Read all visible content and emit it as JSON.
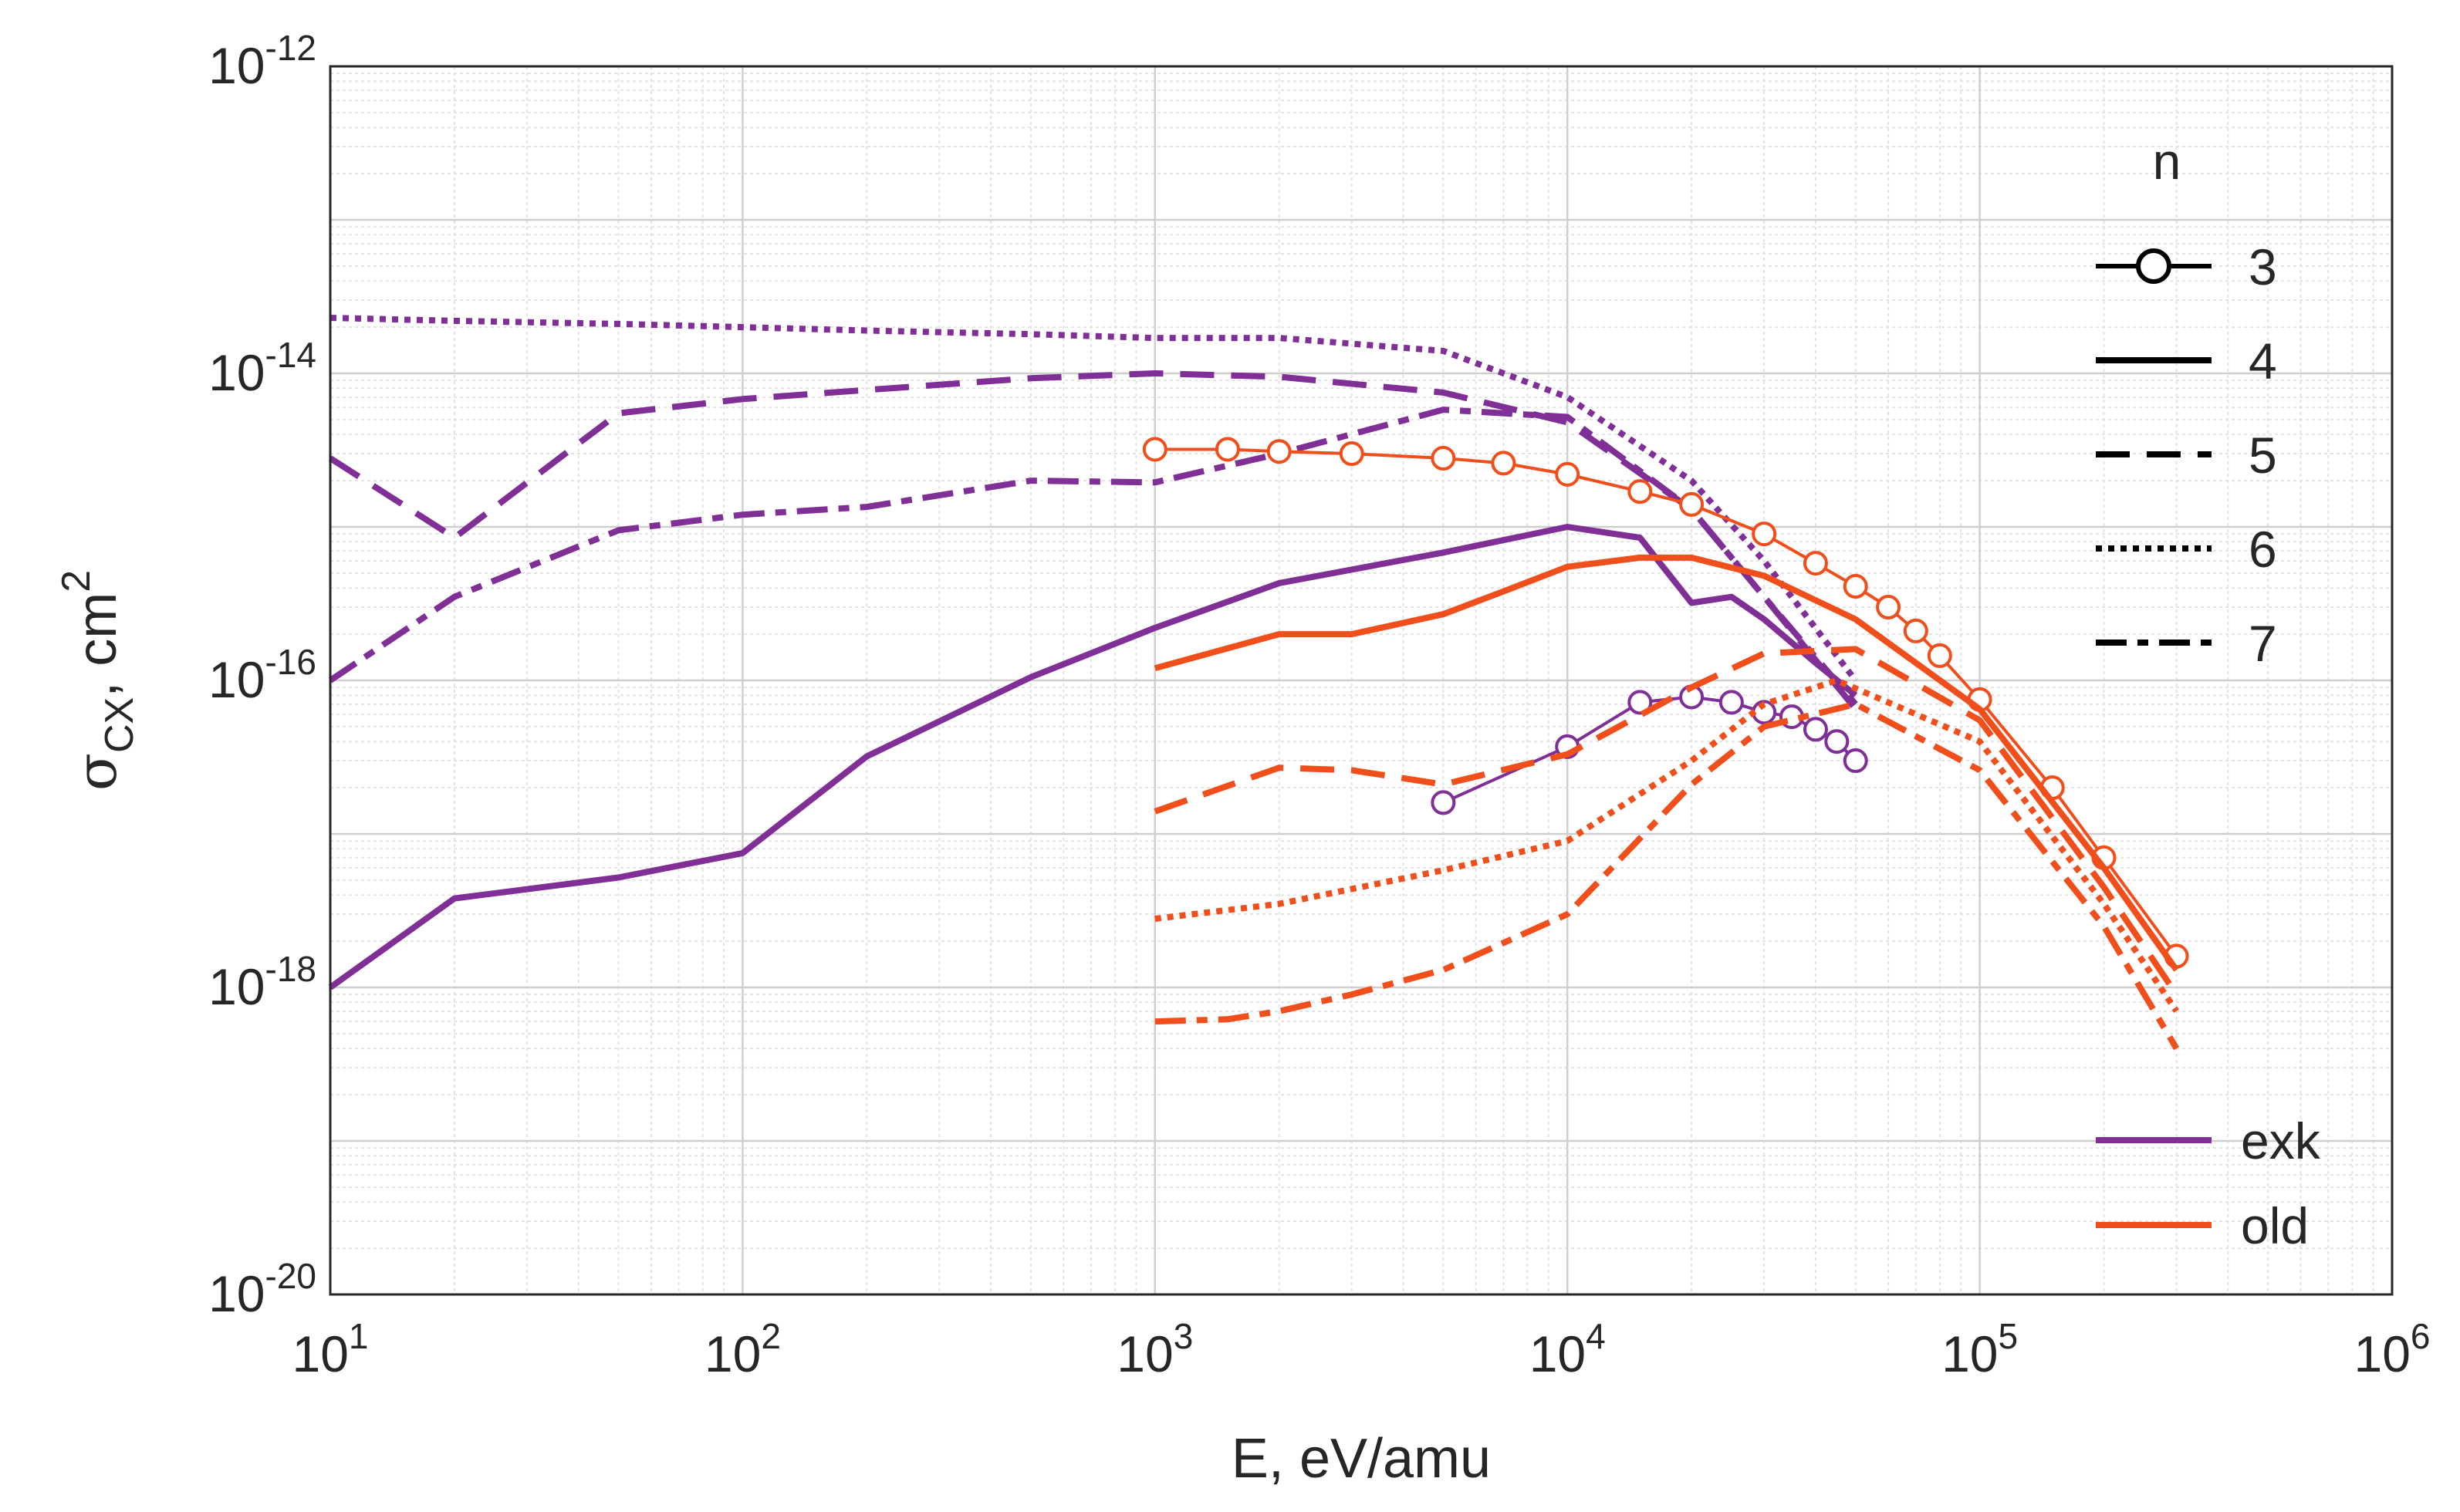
{
  "chart_data": {
    "type": "line",
    "xscale": "log",
    "yscale": "log",
    "xlim": [
      10,
      1000000
    ],
    "ylim": [
      1e-20,
      1e-12
    ],
    "grid": true,
    "minor_grid": true,
    "xlabel": "E, eV/amu",
    "ylabel": {
      "symbol": "σ",
      "subscript": "CX",
      "rest": ", cm",
      "superscript": "2"
    },
    "x_ticks": [
      {
        "base": "10",
        "exp": "1",
        "value": 10
      },
      {
        "base": "10",
        "exp": "2",
        "value": 100
      },
      {
        "base": "10",
        "exp": "3",
        "value": 1000
      },
      {
        "base": "10",
        "exp": "4",
        "value": 10000
      },
      {
        "base": "10",
        "exp": "5",
        "value": 100000
      },
      {
        "base": "10",
        "exp": "6",
        "value": 1000000
      }
    ],
    "y_ticks": [
      {
        "base": "10",
        "exp": "-20",
        "value": 1e-20
      },
      {
        "base": "10",
        "exp": "-18",
        "value": 1e-18
      },
      {
        "base": "10",
        "exp": "-16",
        "value": 1e-16
      },
      {
        "base": "10",
        "exp": "-14",
        "value": 1e-14
      },
      {
        "base": "10",
        "exp": "-12",
        "value": 1e-12
      }
    ],
    "legend_n": {
      "title": "n",
      "placement": "top-right",
      "entries": [
        {
          "label": "3",
          "style": "solid-circle"
        },
        {
          "label": "4",
          "style": "solid"
        },
        {
          "label": "5",
          "style": "dashed"
        },
        {
          "label": "6",
          "style": "dotted"
        },
        {
          "label": "7",
          "style": "dashdot"
        }
      ]
    },
    "legend_source": {
      "placement": "bottom-right",
      "entries": [
        {
          "label": "exk",
          "color": "#7f2f96"
        },
        {
          "label": "old",
          "color": "#f04e1a"
        }
      ]
    },
    "colors": {
      "exk": "#7f2f96",
      "old": "#f04e1a"
    },
    "series": [
      {
        "name": "exk n=6",
        "source": "exk",
        "n": 6,
        "style": "dotted",
        "x": [
          10,
          20,
          50,
          100,
          200,
          500,
          1000,
          2000,
          5000,
          10000,
          20000,
          30000,
          50000
        ],
        "y": [
          2.3e-14,
          2.2e-14,
          2.1e-14,
          2e-14,
          1.9e-14,
          1.8e-14,
          1.7e-14,
          1.7e-14,
          1.4e-14,
          7e-15,
          2e-15,
          6e-16,
          1e-16
        ]
      },
      {
        "name": "exk n=5",
        "source": "exk",
        "n": 5,
        "style": "dashed",
        "x": [
          10,
          20,
          50,
          100,
          200,
          500,
          1000,
          2000,
          5000,
          10000,
          20000,
          30000,
          50000
        ],
        "y": [
          2.8e-15,
          8.5e-16,
          5.5e-15,
          6.8e-15,
          7.8e-15,
          9.3e-15,
          1e-14,
          9.5e-15,
          7.5e-15,
          4.8e-15,
          1.3e-15,
          3.5e-16,
          6.5e-17
        ]
      },
      {
        "name": "exk n=7",
        "source": "exk",
        "n": 7,
        "style": "dashdot",
        "x": [
          10,
          20,
          50,
          100,
          200,
          500,
          1000,
          2000,
          5000,
          10000,
          20000,
          30000,
          50000
        ],
        "y": [
          1e-16,
          3.5e-16,
          9.5e-16,
          1.2e-15,
          1.35e-15,
          2e-15,
          1.95e-15,
          3e-15,
          5.8e-15,
          5.2e-15,
          1.3e-15,
          3.5e-16,
          7e-17
        ]
      },
      {
        "name": "exk n=4",
        "source": "exk",
        "n": 4,
        "style": "solid",
        "x": [
          10,
          20,
          50,
          100,
          200,
          500,
          1000,
          2000,
          5000,
          10000,
          15000,
          20000,
          25000,
          30000,
          40000,
          50000
        ],
        "y": [
          1e-18,
          3.8e-18,
          5.2e-18,
          7.5e-18,
          3.2e-17,
          1.05e-16,
          2.2e-16,
          4.3e-16,
          6.8e-16,
          1e-15,
          8.5e-16,
          3.2e-16,
          3.5e-16,
          2.5e-16,
          1.3e-16,
          8e-17
        ]
      },
      {
        "name": "exk n=3",
        "source": "exk",
        "n": 3,
        "style": "solid-circle",
        "x": [
          5000,
          10000,
          15000,
          20000,
          25000,
          30000,
          35000,
          40000,
          45000,
          50000
        ],
        "y": [
          1.6e-17,
          3.7e-17,
          7.2e-17,
          7.8e-17,
          7.2e-17,
          6.2e-17,
          5.8e-17,
          4.8e-17,
          4e-17,
          3e-17
        ]
      },
      {
        "name": "old n=3",
        "source": "old",
        "n": 3,
        "style": "solid-circle",
        "x": [
          1000,
          1500,
          2000,
          3000,
          5000,
          7000,
          10000,
          15000,
          20000,
          30000,
          40000,
          50000,
          60000,
          70000,
          80000,
          100000,
          150000,
          200000,
          300000
        ],
        "y": [
          3.2e-15,
          3.2e-15,
          3.1e-15,
          3e-15,
          2.8e-15,
          2.6e-15,
          2.2e-15,
          1.7e-15,
          1.4e-15,
          9e-16,
          5.8e-16,
          4.1e-16,
          3e-16,
          2.1e-16,
          1.45e-16,
          7.5e-17,
          2e-17,
          7e-18,
          1.6e-18
        ]
      },
      {
        "name": "old n=4",
        "source": "old",
        "n": 4,
        "style": "solid",
        "x": [
          1000,
          2000,
          3000,
          5000,
          7000,
          10000,
          15000,
          20000,
          30000,
          50000,
          100000,
          200000,
          300000
        ],
        "y": [
          1.2e-16,
          2e-16,
          2e-16,
          2.7e-16,
          3.8e-16,
          5.5e-16,
          6.3e-16,
          6.3e-16,
          4.8e-16,
          2.5e-16,
          6.5e-17,
          6e-18,
          1.3e-18
        ]
      },
      {
        "name": "old n=5",
        "source": "old",
        "n": 5,
        "style": "dashed",
        "x": [
          1000,
          2000,
          3000,
          5000,
          10000,
          20000,
          30000,
          50000,
          100000,
          200000,
          300000
        ],
        "y": [
          1.4e-17,
          2.7e-17,
          2.6e-17,
          2.1e-17,
          3.3e-17,
          9e-17,
          1.5e-16,
          1.6e-16,
          5.5e-17,
          4.5e-18,
          9e-19
        ]
      },
      {
        "name": "old n=6",
        "source": "old",
        "n": 6,
        "style": "dotted",
        "x": [
          1000,
          2000,
          5000,
          10000,
          20000,
          30000,
          45000,
          100000,
          200000,
          300000
        ],
        "y": [
          2.8e-18,
          3.5e-18,
          5.8e-18,
          9e-18,
          3e-17,
          7e-17,
          1e-16,
          4e-17,
          3.5e-18,
          7e-19
        ]
      },
      {
        "name": "old n=7",
        "source": "old",
        "n": 7,
        "style": "dashdot",
        "x": [
          1000,
          1500,
          2000,
          3000,
          5000,
          10000,
          20000,
          30000,
          50000,
          100000,
          200000,
          300000
        ],
        "y": [
          6e-19,
          6.2e-19,
          7e-19,
          9e-19,
          1.3e-18,
          3e-18,
          2.1e-17,
          5e-17,
          7e-17,
          2.6e-17,
          2.5e-18,
          4e-19
        ]
      }
    ]
  }
}
